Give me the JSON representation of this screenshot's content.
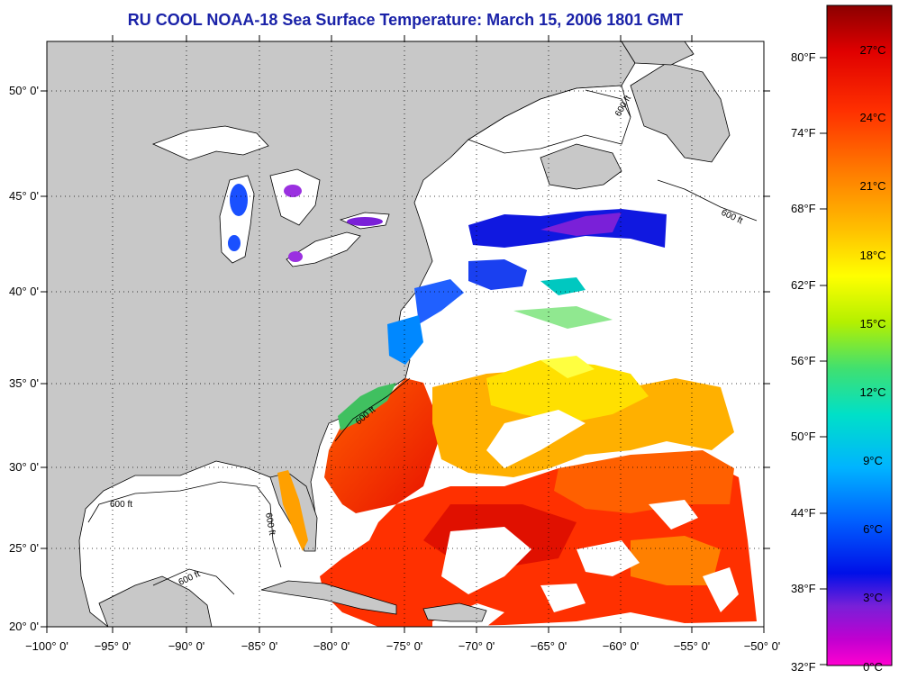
{
  "title": "RU COOL  NOAA-18  Sea Surface Temperature:  March 15, 2006 1801 GMT",
  "colors": {
    "land": "#c8c8c8",
    "no_data": "#ffffff",
    "frame": "#000000",
    "title_text": "#1a22a8"
  },
  "x_ticks": [
    "−100° 0'",
    "−95° 0'",
    "−90° 0'",
    "−85° 0'",
    "−80° 0'",
    "−75° 0'",
    "−70° 0'",
    "−65° 0'",
    "−60° 0'",
    "−55° 0'",
    "−50° 0'"
  ],
  "y_ticks": [
    "50° 0'",
    "45° 0'",
    "40° 0'",
    "35° 0'",
    "30° 0'",
    "25° 0'",
    "20° 0'"
  ],
  "contour_labels": [
    "600 ft",
    "600 ft",
    "600 ft",
    "600 ft",
    "600 ft",
    "600 ft"
  ],
  "colorbar": {
    "fahrenheit_labels": [
      "80°F",
      "74°F",
      "68°F",
      "62°F",
      "56°F",
      "50°F",
      "44°F",
      "38°F",
      "32°F"
    ],
    "celsius_labels": [
      "27°C",
      "24°C",
      "21°C",
      "18°C",
      "15°C",
      "12°C",
      "9°C",
      "6°C",
      "3°C",
      "0°C"
    ],
    "gradient": [
      "#8b0000",
      "#e00000",
      "#ff3000",
      "#ff7a00",
      "#ffc000",
      "#ffff00",
      "#b4f000",
      "#40e070",
      "#00e0c8",
      "#00b4ff",
      "#0060ff",
      "#0010e8",
      "#7820d8",
      "#c000d0",
      "#ff00d0"
    ]
  }
}
